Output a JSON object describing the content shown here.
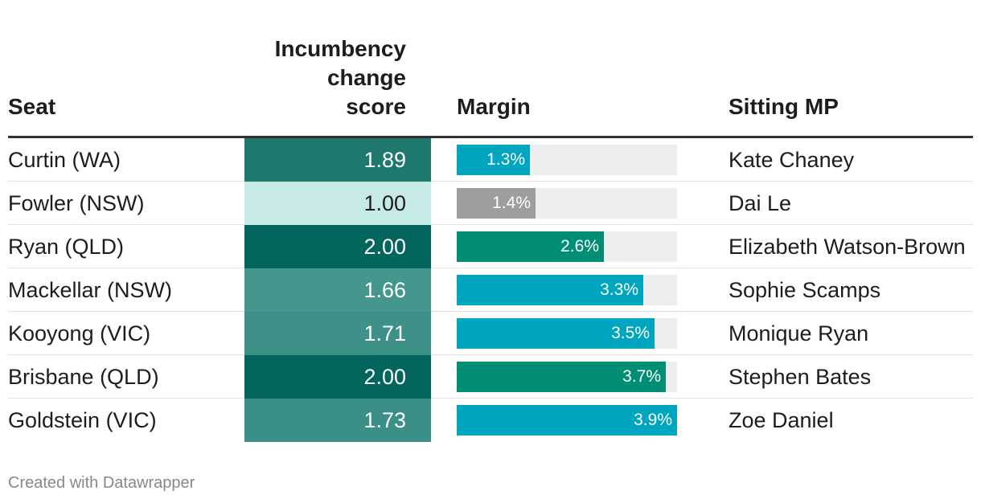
{
  "headers": {
    "seat": "Seat",
    "score_line1": "Incumbency",
    "score_line2": "change",
    "score_line3": "score",
    "margin": "Margin",
    "mp": "Sitting MP"
  },
  "rows": [
    {
      "seat": "Curtin (WA)",
      "score": "1.89",
      "score_bg": "#1e786d",
      "score_fg": "#ffffff",
      "margin_label": "1.3%",
      "bar_color": "#00a5bf",
      "mp": "Kate Chaney"
    },
    {
      "seat": "Fowler (NSW)",
      "score": "1.00",
      "score_bg": "#c6eae5",
      "score_fg": "#1d1d1d",
      "margin_label": "1.4%",
      "bar_color": "#9e9e9e",
      "mp": "Dai Le"
    },
    {
      "seat": "Ryan (QLD)",
      "score": "2.00",
      "score_bg": "#02665e",
      "score_fg": "#ffffff",
      "margin_label": "2.6%",
      "bar_color": "#008f75",
      "mp": "Elizabeth Watson-Brown"
    },
    {
      "seat": "Mackellar (NSW)",
      "score": "1.66",
      "score_bg": "#45978e",
      "score_fg": "#ffffff",
      "margin_label": "3.3%",
      "bar_color": "#00a5bf",
      "mp": "Sophie Scamps"
    },
    {
      "seat": "Kooyong (VIC)",
      "score": "1.71",
      "score_bg": "#3d9188",
      "score_fg": "#ffffff",
      "margin_label": "3.5%",
      "bar_color": "#00a5bf",
      "mp": "Monique Ryan"
    },
    {
      "seat": "Brisbane (QLD)",
      "score": "2.00",
      "score_bg": "#02665e",
      "score_fg": "#ffffff",
      "margin_label": "3.7%",
      "bar_color": "#008f75",
      "mp": "Stephen Bates"
    },
    {
      "seat": "Goldstein (VIC)",
      "score": "1.73",
      "score_bg": "#3a9087",
      "score_fg": "#ffffff",
      "margin_label": "3.9%",
      "bar_color": "#00a5bf",
      "mp": "Zoe Daniel"
    }
  ],
  "footer": "Created with Datawrapper",
  "chart_data": {
    "type": "table",
    "columns": [
      "Seat",
      "Incumbency change score",
      "Margin",
      "Sitting MP"
    ],
    "seats": [
      "Curtin (WA)",
      "Fowler (NSW)",
      "Ryan (QLD)",
      "Mackellar (NSW)",
      "Kooyong (VIC)",
      "Brisbane (QLD)",
      "Goldstein (VIC)"
    ],
    "incumbency_change_score": [
      1.89,
      1.0,
      2.0,
      1.66,
      1.71,
      2.0,
      1.73
    ],
    "margin_percent": [
      1.3,
      1.4,
      2.6,
      3.3,
      3.5,
      3.7,
      3.9
    ],
    "margin_max": 3.9,
    "sitting_mp": [
      "Kate Chaney",
      "Dai Le",
      "Elizabeth Watson-Brown",
      "Sophie Scamps",
      "Monique Ryan",
      "Stephen Bates",
      "Zoe Daniel"
    ]
  }
}
